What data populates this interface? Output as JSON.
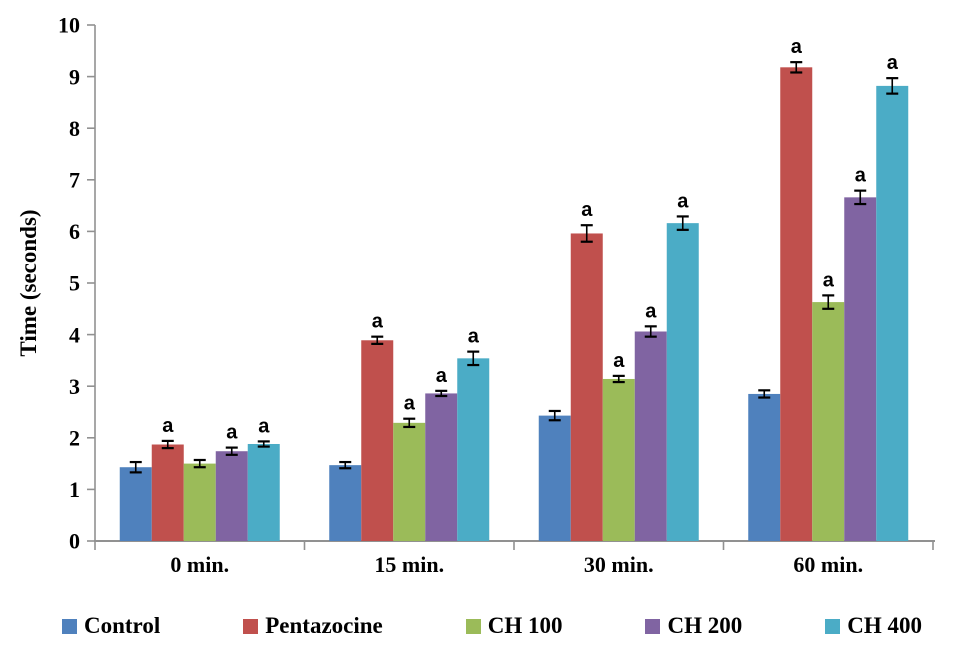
{
  "chart_data": {
    "type": "bar",
    "title": "",
    "xlabel": "",
    "ylabel": "Time (seconds)",
    "ylim": [
      0,
      10
    ],
    "ytick_step": 1,
    "grid": false,
    "legend_position": "bottom",
    "significance_marker": "a",
    "axis_color": "#919191",
    "error_bar_color": "#000000",
    "categories": [
      "0 min.",
      "15 min.",
      "30 min.",
      "60 min."
    ],
    "series": [
      {
        "name": "Control",
        "color": "#4F81BD",
        "values": [
          1.43,
          1.47,
          2.43,
          2.85
        ],
        "errors": [
          0.1,
          0.06,
          0.09,
          0.07
        ],
        "significant": [
          false,
          false,
          false,
          false
        ]
      },
      {
        "name": "Pentazocine",
        "color": "#C0504D",
        "values": [
          1.87,
          3.89,
          5.96,
          9.18
        ],
        "errors": [
          0.07,
          0.07,
          0.16,
          0.1
        ],
        "significant": [
          true,
          true,
          true,
          true
        ]
      },
      {
        "name": "CH 100",
        "color": "#9BBB59",
        "values": [
          1.5,
          2.29,
          3.14,
          4.63
        ],
        "errors": [
          0.07,
          0.08,
          0.06,
          0.13
        ],
        "significant": [
          false,
          true,
          true,
          true
        ]
      },
      {
        "name": "CH 200",
        "color": "#8064A2",
        "values": [
          1.74,
          2.86,
          4.06,
          6.66
        ],
        "errors": [
          0.07,
          0.05,
          0.1,
          0.13
        ],
        "significant": [
          true,
          true,
          true,
          true
        ]
      },
      {
        "name": "CH 400",
        "color": "#4BACC6",
        "values": [
          1.88,
          3.54,
          6.16,
          8.82
        ],
        "errors": [
          0.05,
          0.13,
          0.13,
          0.15
        ],
        "significant": [
          true,
          true,
          true,
          true
        ]
      }
    ]
  }
}
